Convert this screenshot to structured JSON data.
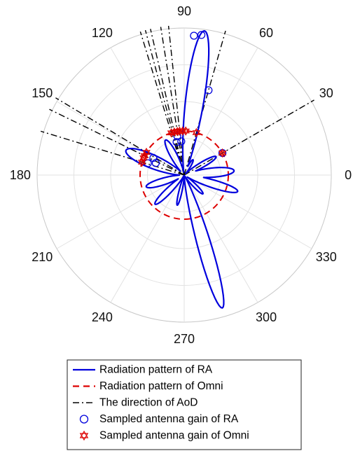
{
  "chart_data": {
    "type": "polar",
    "angle_ticks_deg": [
      0,
      30,
      60,
      90,
      120,
      150,
      180,
      210,
      240,
      270,
      300,
      330
    ],
    "angle_tick_labels": [
      "0",
      "30",
      "60",
      "90",
      "120",
      "150",
      "180",
      "210",
      "240",
      "270",
      "300",
      "330"
    ],
    "radial_grid_rings": 4,
    "r_max": 1.0,
    "grid": true,
    "legend_position": "bottom",
    "legend": [
      "Radiation pattern of RA",
      "Radiation pattern of Omni",
      "The direction of AoD",
      "Sampled antenna gain of RA",
      "Sampled antenna gain of Omni"
    ],
    "series": [
      {
        "name": "Radiation pattern of RA",
        "kind": "polar_line",
        "color": "#0000dd",
        "line_style": "solid",
        "lobes": [
          {
            "center_deg": 82,
            "peak": 0.99,
            "width_deg": 9
          },
          {
            "center_deg": 286,
            "peak": 0.94,
            "width_deg": 7
          },
          {
            "center_deg": 5,
            "peak": 0.34,
            "width_deg": 13
          },
          {
            "center_deg": 343,
            "peak": 0.38,
            "width_deg": 10
          },
          {
            "center_deg": 30,
            "peak": 0.25,
            "width_deg": 10
          },
          {
            "center_deg": 157,
            "peak": 0.43,
            "width_deg": 15
          },
          {
            "center_deg": 197,
            "peak": 0.27,
            "width_deg": 12
          },
          {
            "center_deg": 225,
            "peak": 0.28,
            "width_deg": 10
          },
          {
            "center_deg": 257,
            "peak": 0.21,
            "width_deg": 7
          },
          {
            "center_deg": 315,
            "peak": 0.18,
            "width_deg": 9
          },
          {
            "center_deg": 118,
            "peak": 0.27,
            "width_deg": 12
          },
          {
            "center_deg": 60,
            "peak": 0.12,
            "width_deg": 10
          }
        ]
      },
      {
        "name": "Radiation pattern of Omni",
        "kind": "circle",
        "color": "#dd0000",
        "line_style": "dashed",
        "r": 0.3
      },
      {
        "name": "The direction of AoD",
        "kind": "rays",
        "color": "#000000",
        "line_style": "dashdot",
        "angles_deg": [
          30,
          74,
          96,
          99,
          103,
          105,
          107,
          149,
          154,
          163
        ],
        "r": 1.02
      },
      {
        "name": "Sampled antenna gain of RA",
        "kind": "points",
        "marker": "circle",
        "color": "#0000dd",
        "points": [
          {
            "theta": 83,
            "r": 0.96
          },
          {
            "theta": 86,
            "r": 0.95
          },
          {
            "theta": 74,
            "r": 0.6
          },
          {
            "theta": 95,
            "r": 0.23
          },
          {
            "theta": 100,
            "r": 0.27
          },
          {
            "theta": 103,
            "r": 0.23
          },
          {
            "theta": 151,
            "r": 0.24
          },
          {
            "theta": 157,
            "r": 0.21
          },
          {
            "theta": 162,
            "r": 0.26
          },
          {
            "theta": 30,
            "r": 0.3
          }
        ]
      },
      {
        "name": "Sampled antenna gain of Omni",
        "kind": "points",
        "marker": "hexagram",
        "color": "#dd0000",
        "points": [
          {
            "theta": 30,
            "r": 0.3
          },
          {
            "theta": 74,
            "r": 0.3
          },
          {
            "theta": 88,
            "r": 0.3
          },
          {
            "theta": 92,
            "r": 0.3
          },
          {
            "theta": 96,
            "r": 0.3
          },
          {
            "theta": 99,
            "r": 0.3
          },
          {
            "theta": 103,
            "r": 0.3
          },
          {
            "theta": 107,
            "r": 0.3
          },
          {
            "theta": 149,
            "r": 0.3
          },
          {
            "theta": 154,
            "r": 0.3
          },
          {
            "theta": 157,
            "r": 0.3
          },
          {
            "theta": 163,
            "r": 0.3
          }
        ]
      }
    ]
  }
}
